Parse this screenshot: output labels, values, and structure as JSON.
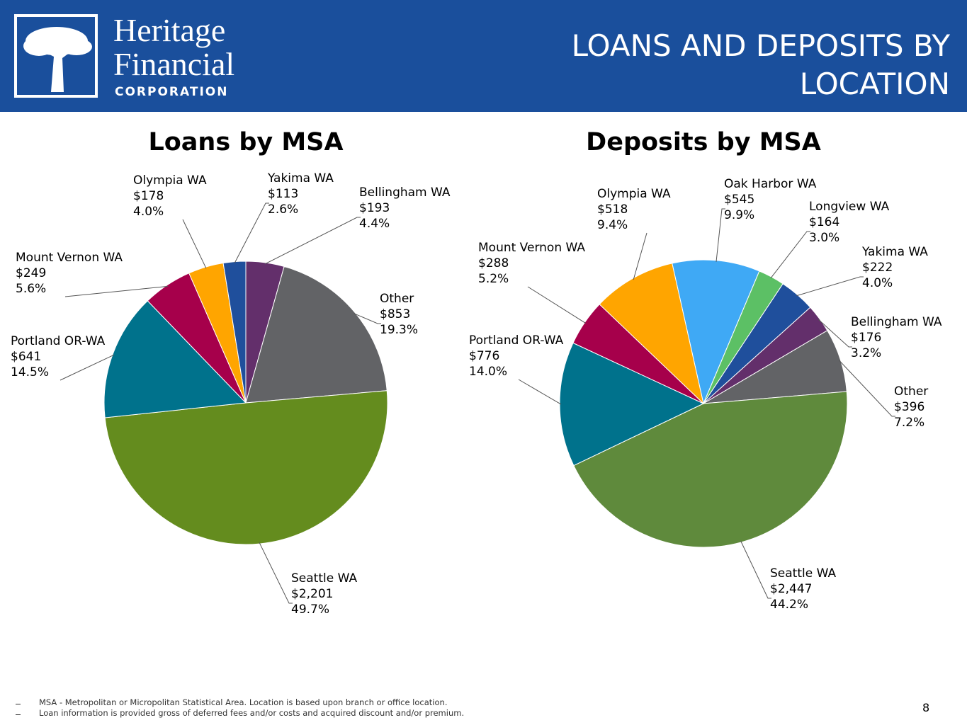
{
  "header": {
    "logo_line1": "Heritage",
    "logo_line2": "Financial",
    "logo_line3": "CORPORATION",
    "title": "LOANS AND DEPOSITS BY LOCATION"
  },
  "chart_data": [
    {
      "type": "pie",
      "title": "Loans by MSA",
      "categories": [
        "Bellingham WA",
        "Other",
        "Seattle WA",
        "Portland OR-WA",
        "Mount Vernon WA",
        "Olympia WA",
        "Yakima WA"
      ],
      "values": [
        193,
        853,
        2201,
        641,
        249,
        178,
        113
      ],
      "value_labels": [
        "$193",
        "$853",
        "$2,201",
        "$641",
        "$249",
        "$178",
        "$113"
      ],
      "percents": [
        4.4,
        19.3,
        49.7,
        14.5,
        5.6,
        4.0,
        2.6
      ],
      "percent_labels": [
        "4.4%",
        "19.3%",
        "49.7%",
        "14.5%",
        "5.6%",
        "4.0%",
        "2.6%"
      ],
      "colors": [
        "#632f6b",
        "#626366",
        "#648c1e",
        "#00728c",
        "#a6004b",
        "#ffa500",
        "#1f4f9c"
      ]
    },
    {
      "type": "pie",
      "title": "Deposits by MSA",
      "categories": [
        "Oak Harbor WA",
        "Longview WA",
        "Yakima WA",
        "Bellingham WA",
        "Other",
        "Seattle WA",
        "Portland OR-WA",
        "Mount Vernon WA",
        "Olympia WA"
      ],
      "values": [
        545,
        164,
        222,
        176,
        396,
        2447,
        776,
        288,
        518
      ],
      "value_labels": [
        "$545",
        "$164",
        "$222",
        "$176",
        "$396",
        "$2,447",
        "$776",
        "$288",
        "$518"
      ],
      "percents": [
        9.9,
        3.0,
        4.0,
        3.2,
        7.2,
        44.2,
        14.0,
        5.2,
        9.4
      ],
      "percent_labels": [
        "9.9%",
        "3.0%",
        "4.0%",
        "3.2%",
        "7.2%",
        "44.2%",
        "14.0%",
        "5.2%",
        "9.4%"
      ],
      "colors": [
        "#3fa9f5",
        "#5cc065",
        "#1f4f9c",
        "#632f6b",
        "#626366",
        "#5f8a3c",
        "#00728c",
        "#a6004b",
        "#ffa500"
      ]
    }
  ],
  "footnotes": [
    "MSA - Metropolitan or Micropolitan Statistical Area. Location is based upon branch or office location.",
    "Loan information is provided gross of deferred fees and/or costs and acquired discount and/or premium."
  ],
  "page_number": "8"
}
